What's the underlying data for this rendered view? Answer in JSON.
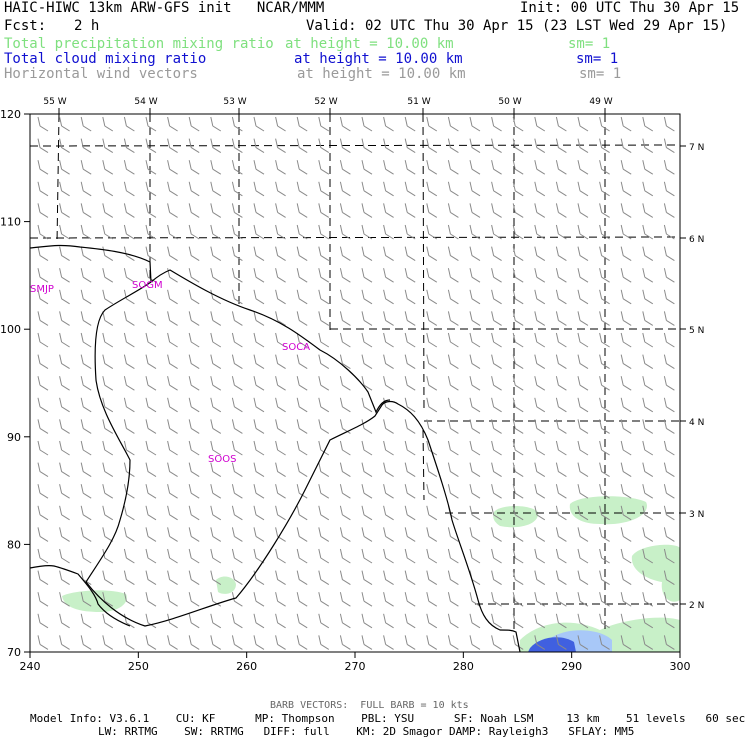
{
  "header": {
    "left_line1": "HAIC-HIWC 13km ARW-GFS init   NCAR/MMM",
    "right_line1": "Init: 00 UTC Thu 30 Apr 15",
    "fcst_label": "Fcst:",
    "fcst_value": "2 h",
    "valid": "Valid: 02 UTC Thu 30 Apr 15 (23 LST Wed 29 Apr 15)",
    "fields": [
      {
        "name": "Total precipitation mixing ratio",
        "level": "at height = 10.00 km",
        "sm": "sm= 1",
        "color": "#7fe07f"
      },
      {
        "name": "Total cloud mixing ratio",
        "level": "at height = 10.00 km",
        "sm": "sm= 1",
        "color": "#1010d0"
      },
      {
        "name": "Horizontal wind vectors",
        "level": "at height = 10.00 km",
        "sm": "sm= 1",
        "color": "#9a9a9a"
      }
    ]
  },
  "map": {
    "x_ticks": [
      "240",
      "250",
      "260",
      "270",
      "280",
      "290",
      "300"
    ],
    "y_ticks": [
      "120",
      "110",
      "100",
      "90",
      "80",
      "70"
    ],
    "lon_labels": [
      "55 W",
      "54 W",
      "53 W",
      "52 W",
      "51 W",
      "50 W",
      "49 W"
    ],
    "lat_labels": [
      "7 N",
      "6 N",
      "5 N",
      "4 N",
      "3 N",
      "2 N"
    ],
    "stations": [
      "SMJP",
      "SOGM",
      "SOCA",
      "SOOS"
    ],
    "station_color": "#d000d0",
    "coast_color": "#000000",
    "barb_color": "#8a8a8a",
    "precip_color": "#c8f0c8",
    "cloud_color": "#4060e0"
  },
  "footer": {
    "barb_note": "BARB VECTORS:  FULL BARB = 10 kts",
    "model_line1": "Model Info: V3.6.1    CU: KF      MP: Thompson    PBL: YSU      SF: Noah LSM     13 km    51 levels   60 sec",
    "model_line2": "LW: RRTMG    SW: RRTMG   DIFF: full    KM: 2D Smagor DAMP: Rayleigh3   SFLAY: MM5"
  }
}
